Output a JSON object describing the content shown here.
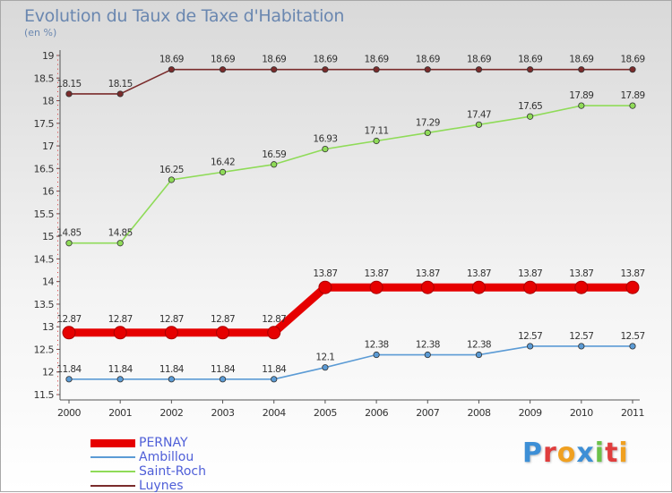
{
  "title": "Evolution du Taux de Taxe d'Habitation",
  "unit": "(en %)",
  "logo": {
    "text": "Proxiti",
    "letters": [
      {
        "ch": "P",
        "color": "#3d8fd6"
      },
      {
        "ch": "r",
        "color": "#e03d3d"
      },
      {
        "ch": "o",
        "color": "#f0a020"
      },
      {
        "ch": "x",
        "color": "#3d8fd6"
      },
      {
        "ch": "i",
        "color": "#6cc24a"
      },
      {
        "ch": "t",
        "color": "#e03d3d"
      },
      {
        "ch": "i",
        "color": "#f0a020"
      }
    ]
  },
  "chart_data": {
    "type": "line",
    "title": "Evolution du Taux de Taxe d'Habitation",
    "ylabel": "(en %)",
    "xlabel": "",
    "x": [
      "2000",
      "2001",
      "2002",
      "2003",
      "2004",
      "2005",
      "2006",
      "2007",
      "2008",
      "2009",
      "2010",
      "2011"
    ],
    "ylim": [
      11.5,
      19
    ],
    "yticks": [
      "11.5",
      "12",
      "12.5",
      "13",
      "13.5",
      "14",
      "14.5",
      "15",
      "15.5",
      "16",
      "16.5",
      "17",
      "17.5",
      "18",
      "18.5",
      "19"
    ],
    "grid": false,
    "legend_position": "bottom-left",
    "series": [
      {
        "name": "PERNAY",
        "color": "#e60000",
        "emphasis": true,
        "values": [
          12.87,
          12.87,
          12.87,
          12.87,
          12.87,
          13.87,
          13.87,
          13.87,
          13.87,
          13.87,
          13.87,
          13.87
        ],
        "labels": [
          "12.87",
          "12.87",
          "12.87",
          "12.87",
          "12.87",
          "13.87",
          "13.87",
          "13.87",
          "13.87",
          "13.87",
          "13.87",
          "13.87"
        ]
      },
      {
        "name": "Ambillou",
        "color": "#5b9bd5",
        "emphasis": false,
        "values": [
          11.84,
          11.84,
          11.84,
          11.84,
          11.84,
          12.1,
          12.38,
          12.38,
          12.38,
          12.57,
          12.57,
          12.57
        ],
        "labels": [
          "11.84",
          "11.84",
          "11.84",
          "11.84",
          "11.84",
          "12.1",
          "12.38",
          "12.38",
          "12.38",
          "12.57",
          "12.57",
          "12.57"
        ]
      },
      {
        "name": "Saint-Roch",
        "color": "#8fdb58",
        "emphasis": false,
        "values": [
          14.85,
          14.85,
          16.25,
          16.42,
          16.59,
          16.93,
          17.11,
          17.29,
          17.47,
          17.65,
          17.89,
          17.89
        ],
        "labels": [
          "14.85",
          "14.85",
          "16.25",
          "16.42",
          "16.59",
          "16.93",
          "17.11",
          "17.29",
          "17.47",
          "17.65",
          "17.89",
          "17.89"
        ]
      },
      {
        "name": "Luynes",
        "color": "#7a2b2b",
        "emphasis": false,
        "values": [
          18.15,
          18.15,
          18.69,
          18.69,
          18.69,
          18.69,
          18.69,
          18.69,
          18.69,
          18.69,
          18.69,
          18.69
        ],
        "labels": [
          "18.15",
          "18.15",
          "18.69",
          "18.69",
          "18.69",
          "18.69",
          "18.69",
          "18.69",
          "18.69",
          "18.69",
          "18.69",
          "18.69"
        ]
      }
    ]
  }
}
